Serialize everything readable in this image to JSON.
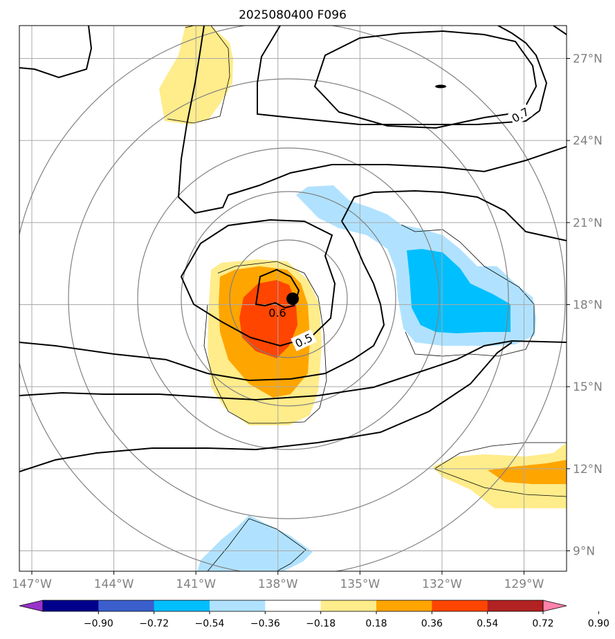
{
  "title": "2025080400 F096",
  "lon_ticks": [
    {
      "value": -147,
      "label": "147°W"
    },
    {
      "value": -144,
      "label": "144°W"
    },
    {
      "value": -141,
      "label": "141°W"
    },
    {
      "value": -138,
      "label": "138°W"
    },
    {
      "value": -135,
      "label": "135°W"
    },
    {
      "value": -132,
      "label": "132°W"
    },
    {
      "value": -129,
      "label": "129°W"
    }
  ],
  "lat_ticks": [
    {
      "value": 27,
      "label": "27°N"
    },
    {
      "value": 24,
      "label": "24°N"
    },
    {
      "value": 21,
      "label": "21°N"
    },
    {
      "value": 18,
      "label": "18°N"
    },
    {
      "value": 15,
      "label": "15°N"
    },
    {
      "value": 12,
      "label": "12°N"
    },
    {
      "value": 9,
      "label": "9°N"
    }
  ],
  "colorbar": {
    "colors": [
      "#9932cc",
      "#00008b",
      "#3a5fcd",
      "#00bfff",
      "#b0e2ff",
      "#ffffff",
      "#ffec8b",
      "#ffa500",
      "#ff4500",
      "#b22222",
      "#ff82ab"
    ],
    "labels": [
      "−0.90",
      "−0.72",
      "−0.54",
      "−0.36",
      "−0.18",
      "0.18",
      "0.36",
      "0.54",
      "0.72",
      "0.90"
    ]
  },
  "contour_labels": [
    {
      "text": "0.7"
    },
    {
      "text": "0.6"
    },
    {
      "text": "0.5"
    }
  ],
  "storm_center": {
    "lon": -137.5,
    "lat": 18.2
  }
}
